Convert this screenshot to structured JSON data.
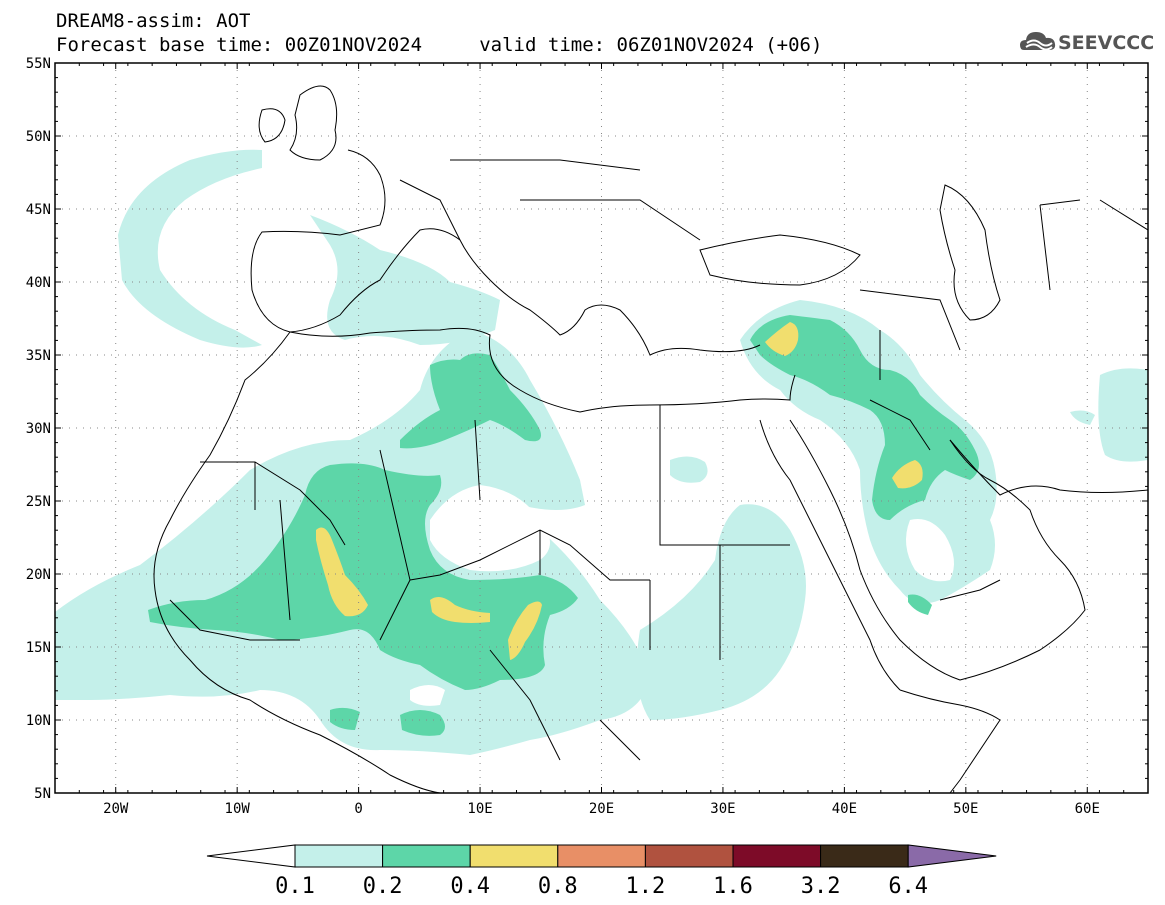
{
  "header": {
    "line1": "DREAM8-assim: AOT",
    "line2": "Forecast base time: 00Z01NOV2024     valid time: 06Z01NOV2024 (+06)",
    "logo_text": "SEEVCCC",
    "logo_icon": "cloud-icon"
  },
  "map": {
    "lon_range": [
      -25,
      65
    ],
    "lat_range": [
      5,
      55
    ],
    "lat_ticks": [
      "55N",
      "50N",
      "45N",
      "40N",
      "35N",
      "30N",
      "25N",
      "20N",
      "15N",
      "10N",
      "5N"
    ],
    "lon_ticks": [
      "20W",
      "10W",
      "0",
      "10E",
      "20E",
      "30E",
      "40E",
      "50E",
      "60E"
    ],
    "grid": "dotted"
  },
  "colorbar": {
    "labels": [
      "0.1",
      "0.2",
      "0.4",
      "0.8",
      "1.2",
      "1.6",
      "3.2",
      "6.4"
    ],
    "colors": [
      "#c4f0ea",
      "#5dd6a8",
      "#f1de6e",
      "#e88f66",
      "#b0523f",
      "#7d0b28",
      "#3a2a18",
      "#8a6aa8"
    ],
    "under_color": "#ffffff"
  }
}
